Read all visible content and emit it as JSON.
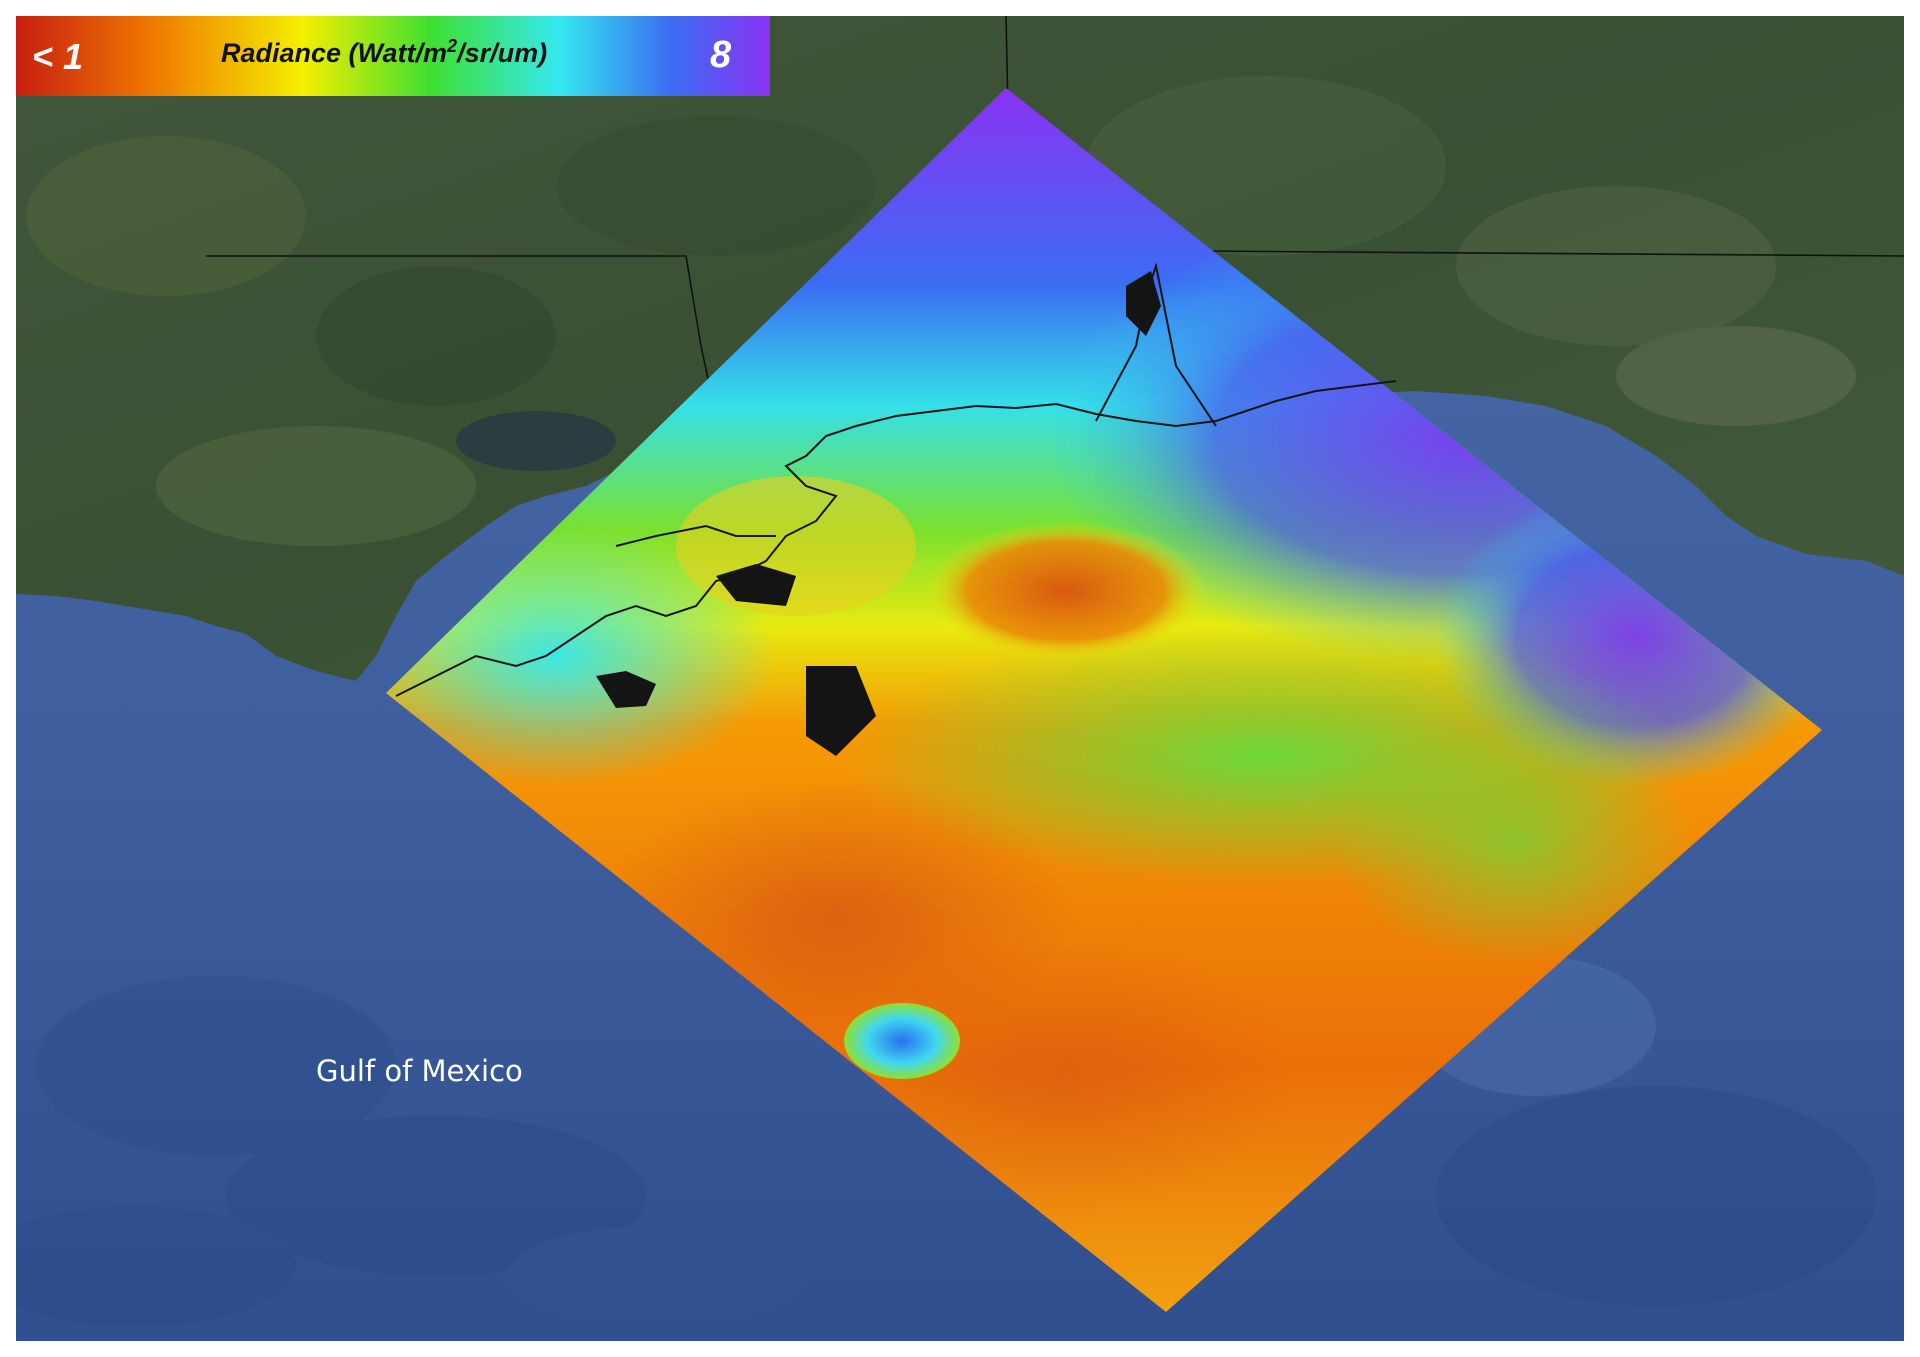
{
  "colorbar": {
    "min_label": "< 1",
    "max_label": "8",
    "title_prefix": "Radiance (Watt/m",
    "title_superscript": "2",
    "title_suffix": "/sr/um)",
    "colors": [
      "#c71e12",
      "#f07800",
      "#f5ef00",
      "#3ee030",
      "#35e8f0",
      "#3b6cf2",
      "#8a33f2"
    ]
  },
  "map": {
    "region_label": "Gulf of Mexico",
    "land_color": "#3c5233",
    "ocean_color": "#3f5f9e",
    "boundary_color": "#111111"
  }
}
